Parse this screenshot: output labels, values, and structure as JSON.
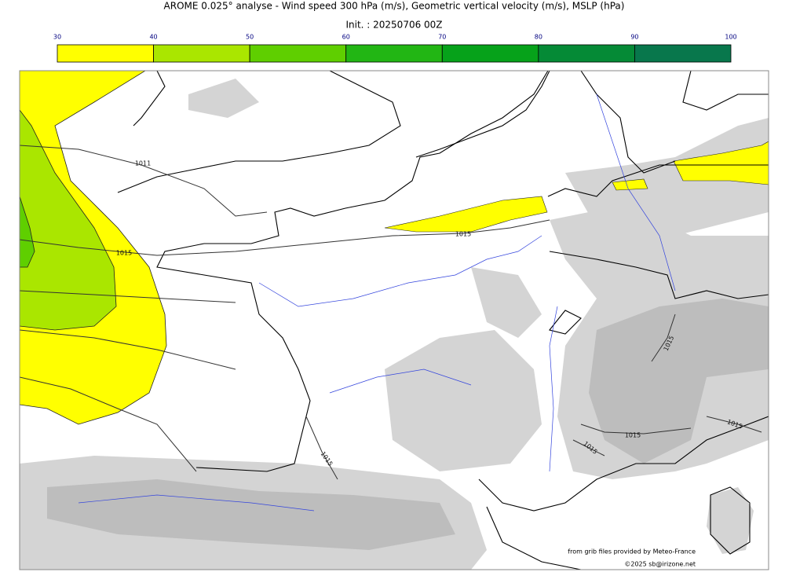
{
  "header": {
    "title": "AROME 0.025° analyse - Wind speed 300 hPa (m/s), Geometric vertical velocity (m/s), MSLP (hPa)",
    "subtitle": "Init. : 20250706 00Z"
  },
  "colorbar": {
    "ticks": [
      30,
      40,
      50,
      60,
      70,
      80,
      90,
      100
    ],
    "colors": [
      "#ffff00",
      "#aae600",
      "#5fcf00",
      "#22b614",
      "#06a21a",
      "#058a36",
      "#08774c"
    ]
  },
  "map": {
    "isobar_labels": [
      "1011",
      "1015",
      "1015",
      "1015",
      "1015",
      "1015",
      "1015",
      "1015"
    ]
  },
  "credits": [
    "from grib files provided by Meteo-France",
    "©2025 sb@irizone.net"
  ]
}
